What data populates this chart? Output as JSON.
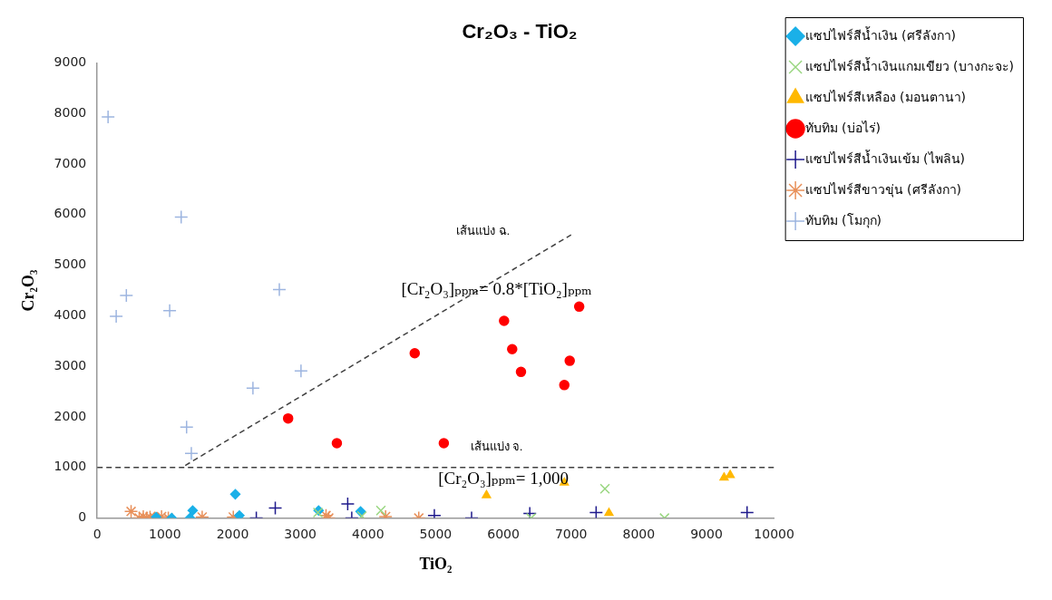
{
  "chart_data": {
    "type": "scatter",
    "title": "Cr₂O₃ - TiO₂",
    "xlabel": "TiO₂",
    "ylabel": "Cr₂O₃",
    "xlim": [
      0,
      10000
    ],
    "xticks": [
      0,
      1000,
      2000,
      3000,
      4000,
      5000,
      6000,
      7000,
      8000,
      9000,
      10000
    ],
    "ylim": [
      0,
      9000
    ],
    "yticks": [
      0,
      1000,
      2000,
      3000,
      4000,
      5000,
      6000,
      7000,
      8000,
      9000
    ],
    "grid": false,
    "legend": "right",
    "series": [
      {
        "name": "แซปไฟร์สีน้ำเงิน (ศรีลังกา)",
        "color": "#1ab0e8",
        "marker": "diamond",
        "x": [
          2040,
          1410,
          1370,
          870,
          1100,
          2100,
          3270,
          3890
        ],
        "values": [
          470,
          150,
          0,
          20,
          0,
          50,
          150,
          130
        ]
      },
      {
        "name": "แซปไฟร์สีน้ำเงินแกมเขียว (บางกะจะ)",
        "color": "#99d680",
        "marker": "x",
        "x": [
          7500,
          6410,
          8380,
          4190,
          3260,
          3910
        ],
        "values": [
          580,
          0,
          0,
          150,
          110,
          40
        ]
      },
      {
        "name": "แซปไฟร์สีเหลือง (มอนตานา)",
        "color": "#ffb800",
        "marker": "triangle",
        "x": [
          5750,
          6900,
          7560,
          9260,
          9350
        ],
        "values": [
          450,
          700,
          100,
          800,
          850
        ]
      },
      {
        "name": "ทับทิม (บ่อไร่)",
        "color": "#ff0000",
        "marker": "circle",
        "x": [
          2820,
          3540,
          4690,
          5120,
          6010,
          6130,
          6260,
          6900,
          6980,
          7120
        ],
        "values": [
          1970,
          1480,
          3260,
          1480,
          3900,
          3340,
          2890,
          2630,
          3110,
          4180
        ]
      },
      {
        "name": "แซปไฟร์สีน้ำเงินเข้ม (ไพลิน)",
        "color": "#1f1a8c",
        "marker": "plus",
        "x": [
          4980,
          5530,
          6390,
          7370,
          9600,
          2350,
          2630,
          3700,
          3760
        ],
        "values": [
          50,
          0,
          90,
          110,
          110,
          0,
          200,
          280,
          0
        ]
      },
      {
        "name": "แซปไฟร์สีขาวขุ่น (ศรีลังกา)",
        "color": "#e8905a",
        "marker": "cross",
        "x": [
          500,
          620,
          680,
          730,
          780,
          850,
          950,
          1050,
          1550,
          2010,
          3380,
          3420,
          4260,
          4750
        ],
        "values": [
          130,
          0,
          30,
          0,
          20,
          0,
          30,
          0,
          20,
          20,
          50,
          0,
          30,
          0
        ]
      },
      {
        "name": "ทับทิม (โมกุก)",
        "color": "#9db5e0",
        "marker": "plus",
        "x": [
          160,
          280,
          430,
          1070,
          1240,
          1320,
          1390,
          2300,
          2690,
          3010
        ],
        "values": [
          7930,
          3990,
          4400,
          4100,
          5950,
          1800,
          1280,
          2570,
          4520,
          2910
        ]
      },
      {
        "type": "line",
        "color": "#404040",
        "line_style": "dashed",
        "marker": "none",
        "x": [
          1300,
          7000
        ],
        "values": [
          1040,
          5600
        ]
      }
    ],
    "ref_lines": [
      {
        "axis": "y",
        "value": 1000,
        "color": "#404040",
        "line_style": "dashed"
      }
    ],
    "annotations": [
      "เส้นแบ่ง ฉ.",
      "[Cr₂O₃]ₚₚₘ= 0.8*[TiO₂]ₚₚₘ",
      "เส้นแบ่ง จ.",
      "[Cr₂O₃]ₚₚₘ= 1,000"
    ]
  }
}
